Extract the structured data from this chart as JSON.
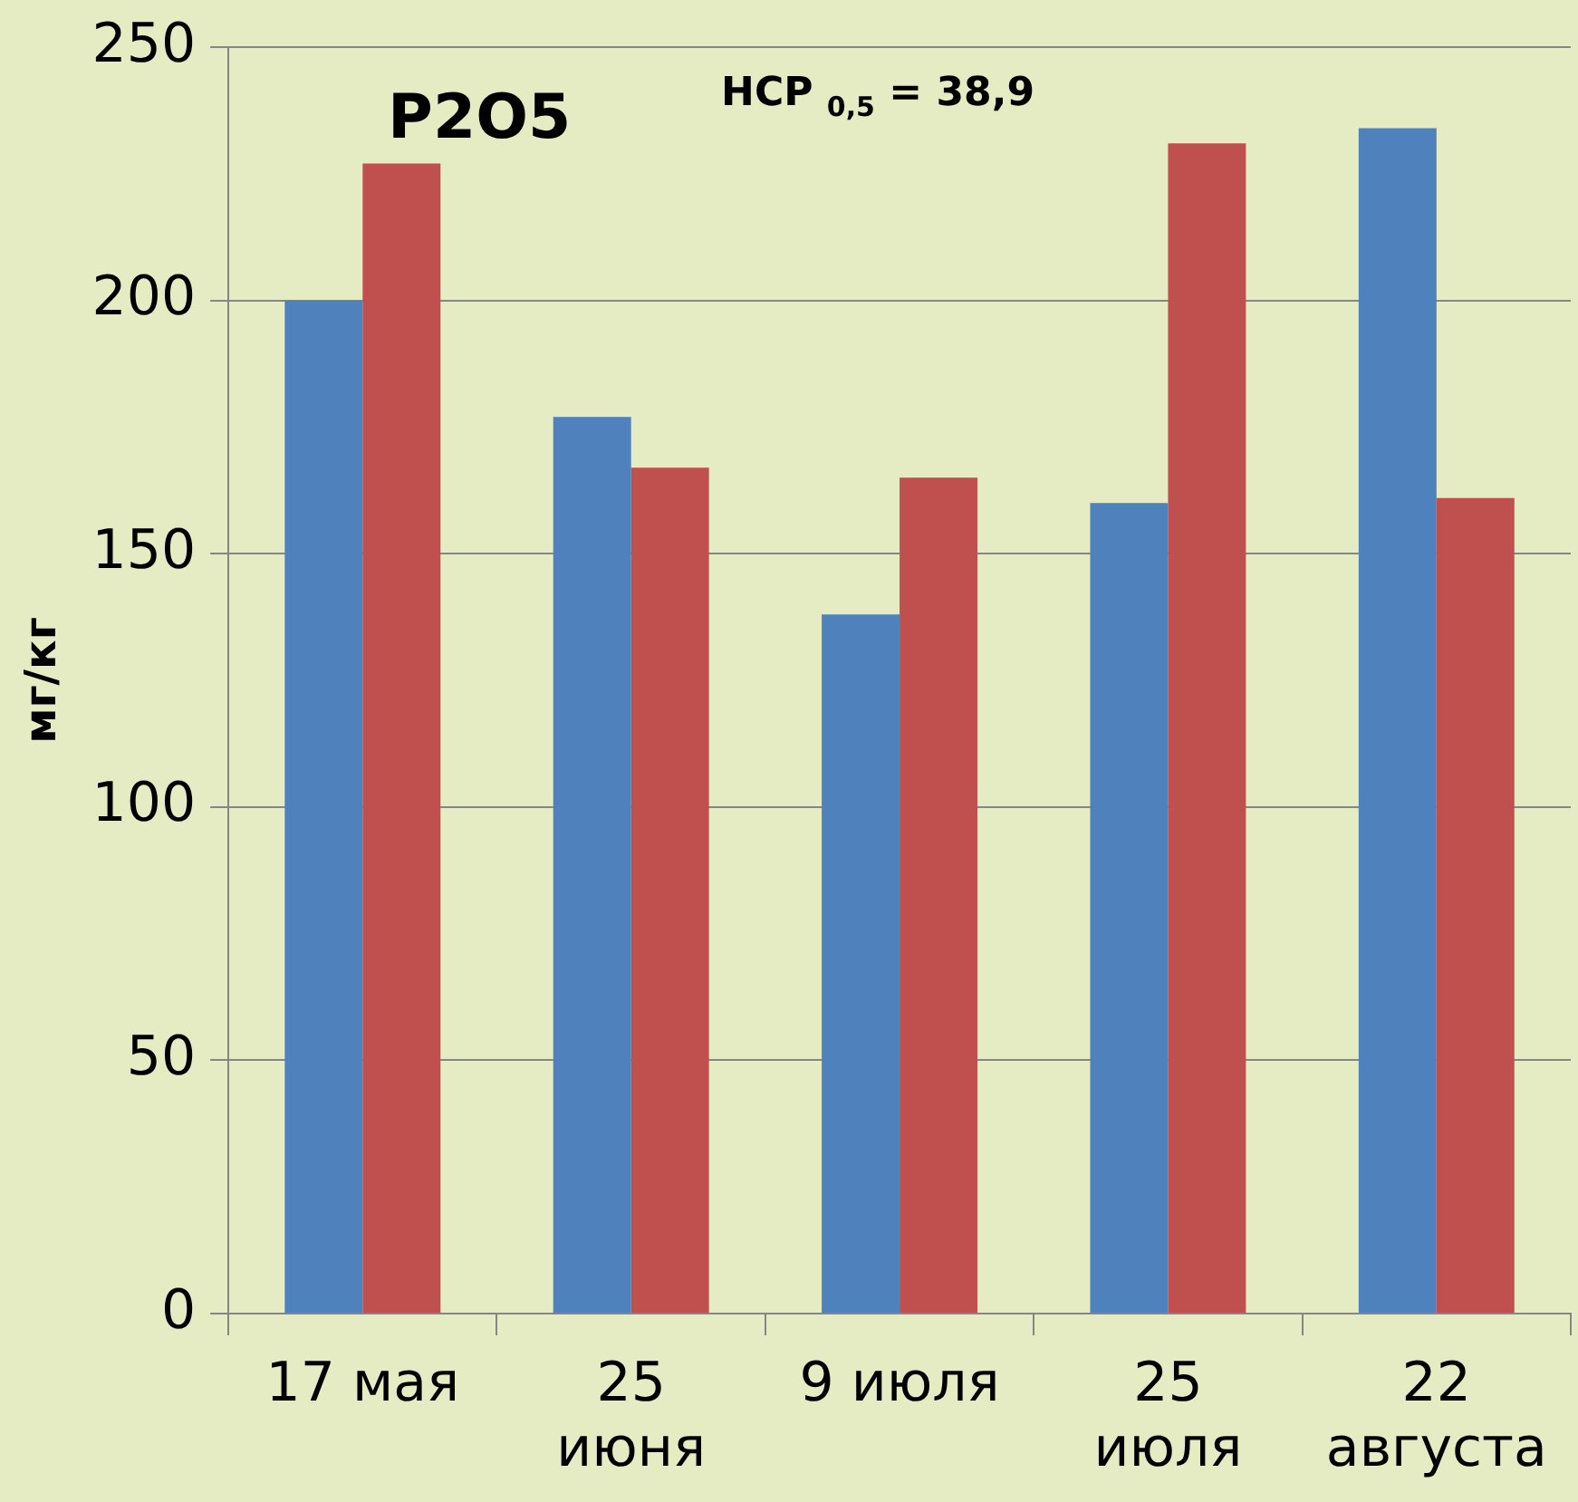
{
  "chart_data": {
    "type": "bar",
    "title": "P2O5",
    "ylabel": "мг/кг",
    "annotations": [
      "НСР $_{0,5}$ = 38,9"
    ],
    "categories": [
      "17 мая",
      "25\nиюня",
      "9 июля",
      "25\nиюля",
      "22\nавгуста"
    ],
    "series": [
      {
        "color": "#4f81bd",
        "values": [
          200,
          177,
          138,
          160,
          234
        ]
      },
      {
        "color": "#c0504d",
        "values": [
          227,
          167,
          165,
          231,
          161
        ]
      }
    ],
    "ylim": [
      0,
      250
    ],
    "yticks": [
      0,
      50,
      100,
      150,
      200,
      250
    ],
    "grid": "y"
  }
}
